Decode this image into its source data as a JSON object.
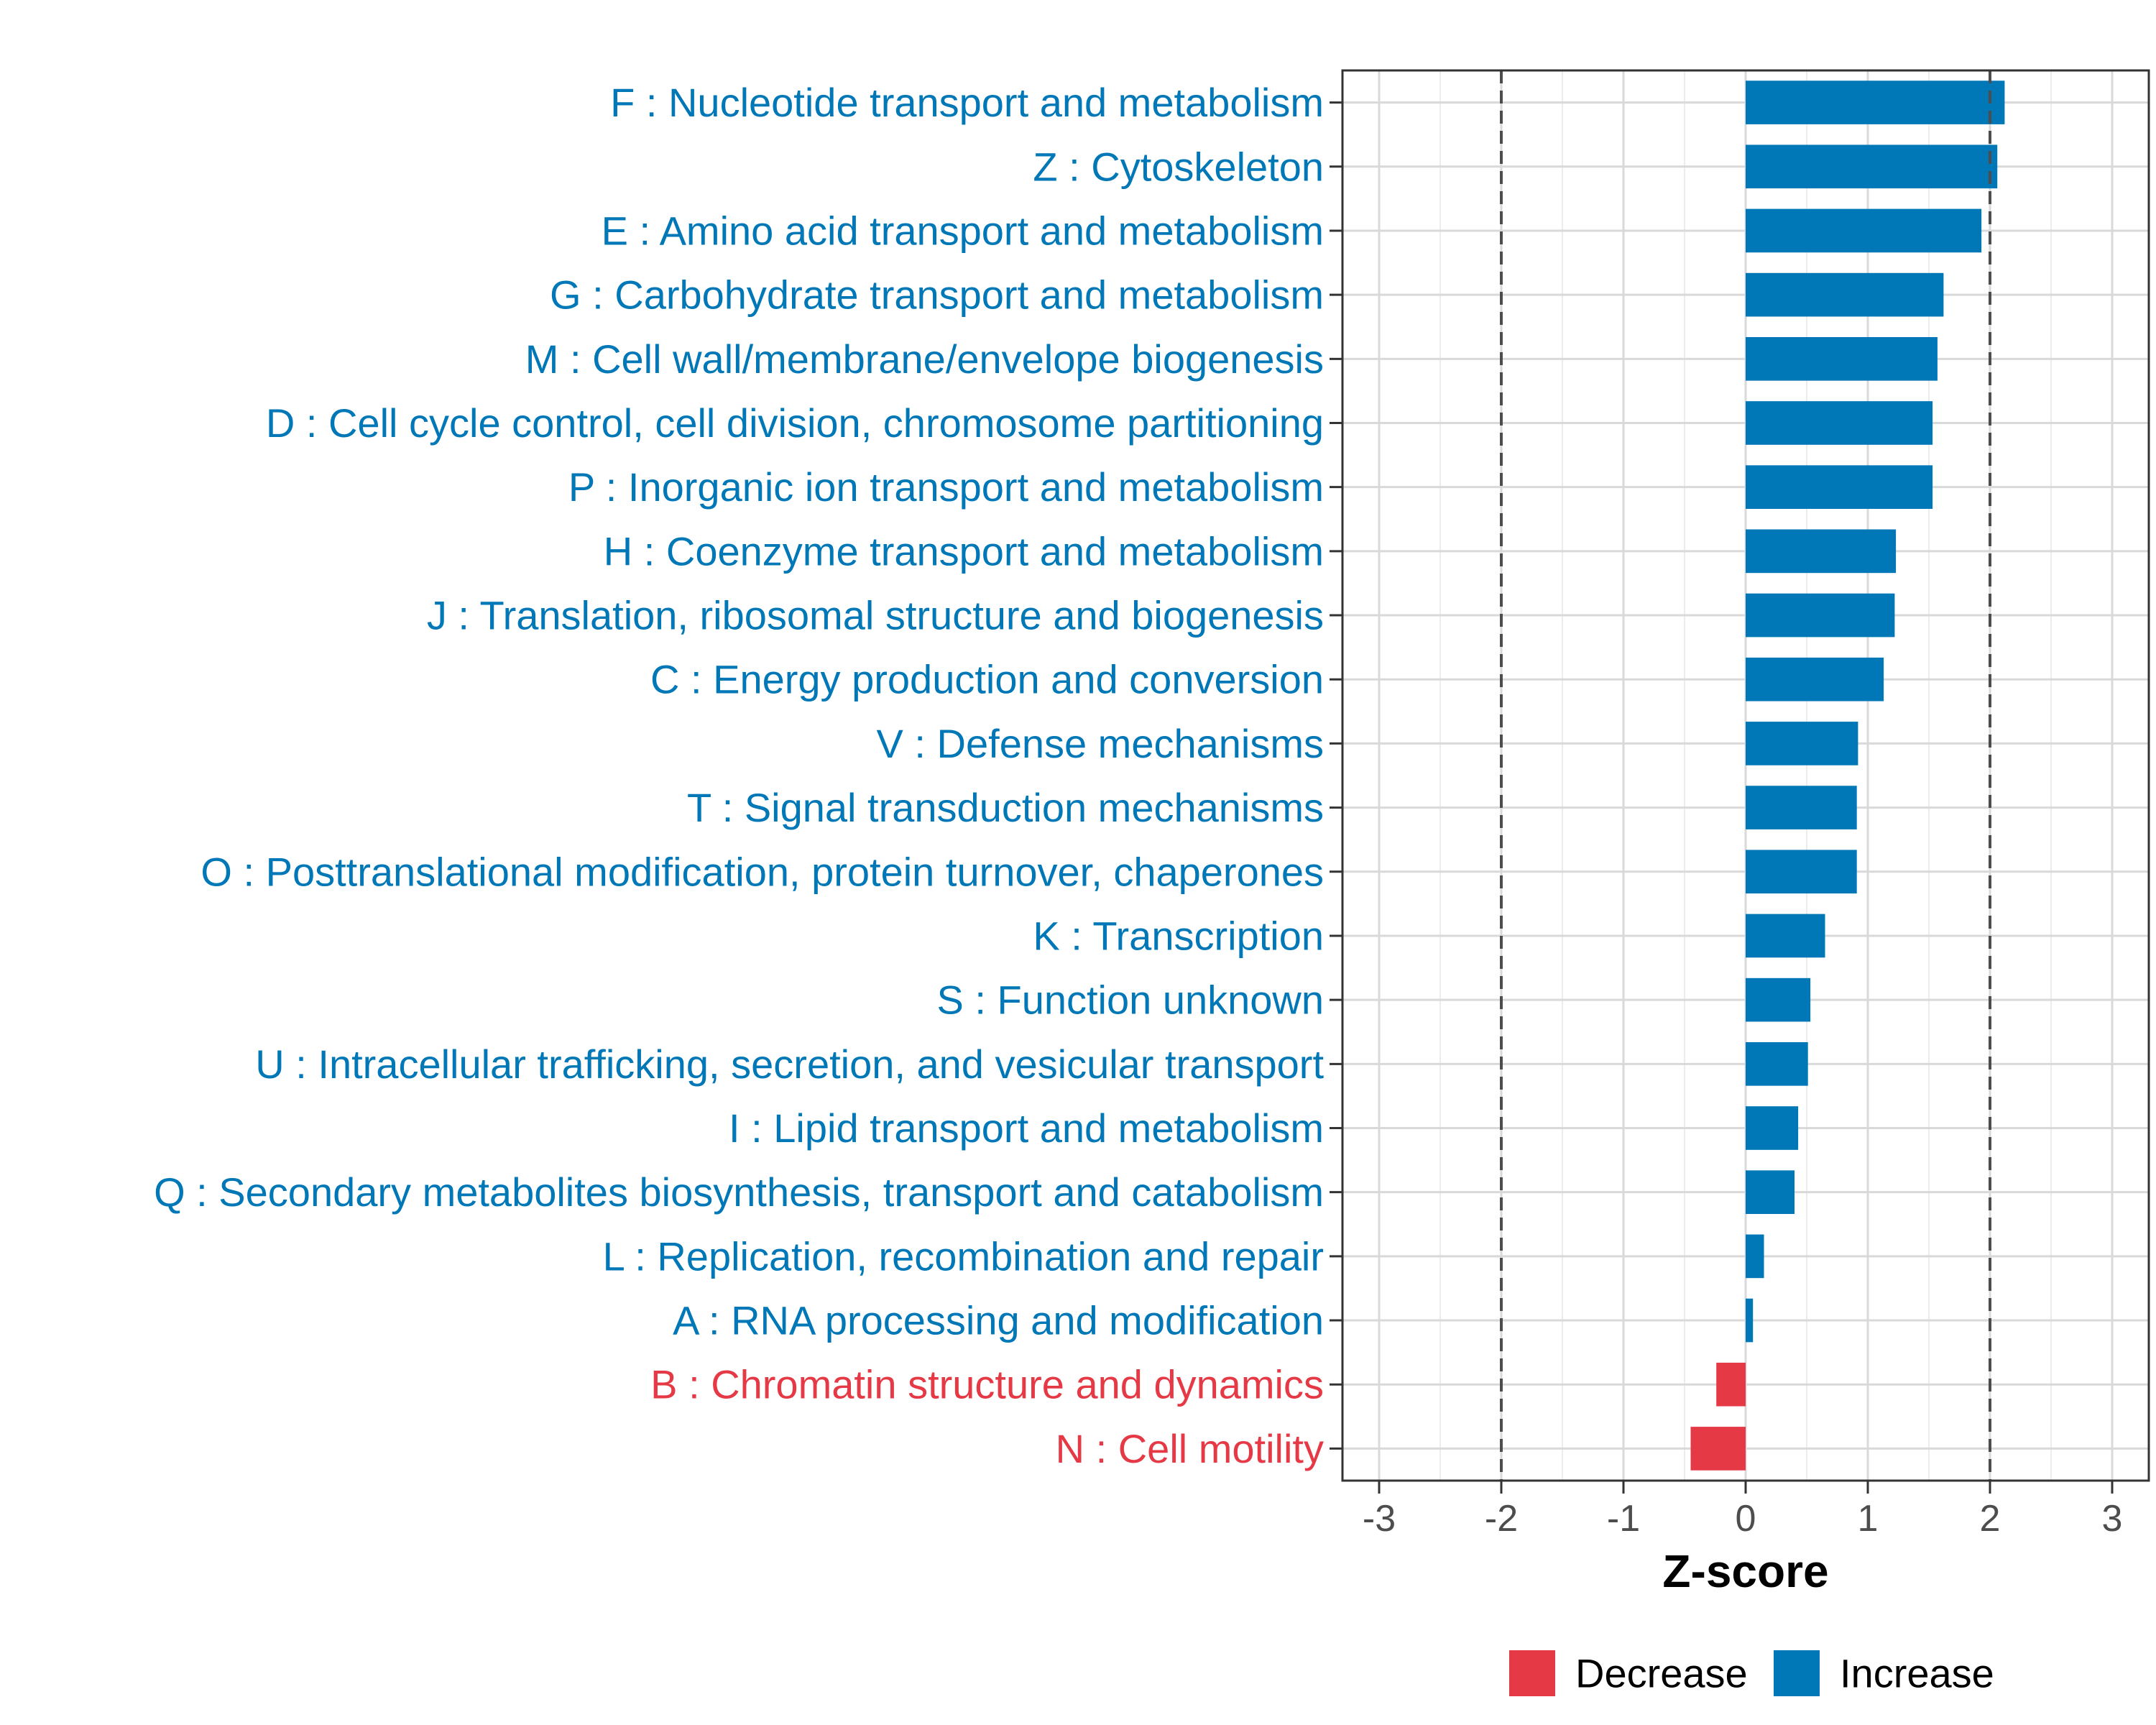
{
  "chart_data": {
    "type": "bar",
    "orientation": "horizontal",
    "xlabel": "Z-score",
    "ylabel": "",
    "xlim": [
      -3.3,
      3.3
    ],
    "xticks": [
      "-3",
      "-2",
      "-1",
      "0",
      "1",
      "2",
      "3"
    ],
    "reference_lines": [
      -2,
      2
    ],
    "categories": [
      "F : Nucleotide transport and metabolism",
      "Z : Cytoskeleton",
      "E : Amino acid transport and metabolism",
      "G : Carbohydrate transport and metabolism",
      "M : Cell wall/membrane/envelope biogenesis",
      "D : Cell cycle control, cell division, chromosome partitioning",
      "P : Inorganic ion transport and metabolism",
      "H : Coenzyme transport and metabolism",
      "J : Translation, ribosomal structure and biogenesis",
      "C : Energy production and conversion",
      "V : Defense mechanisms",
      "T : Signal transduction mechanisms",
      "O : Posttranslational modification, protein turnover, chaperones",
      "K : Transcription",
      "S : Function unknown",
      "U : Intracellular trafficking, secretion, and vesicular transport",
      "I : Lipid transport and metabolism",
      "Q : Secondary metabolites biosynthesis, transport and catabolism",
      "L : Replication, recombination and repair",
      "A : RNA processing and modification",
      "B : Chromatin structure and dynamics",
      "N : Cell motility"
    ],
    "values": [
      2.12,
      2.06,
      1.93,
      1.62,
      1.57,
      1.53,
      1.53,
      1.23,
      1.22,
      1.13,
      0.92,
      0.91,
      0.91,
      0.65,
      0.53,
      0.51,
      0.43,
      0.4,
      0.15,
      0.06,
      -0.24,
      -0.45
    ],
    "legend": [
      {
        "label": "Decrease",
        "color": "#E63946"
      },
      {
        "label": "Increase",
        "color": "#0077B6"
      }
    ],
    "legend_position": "bottom"
  }
}
